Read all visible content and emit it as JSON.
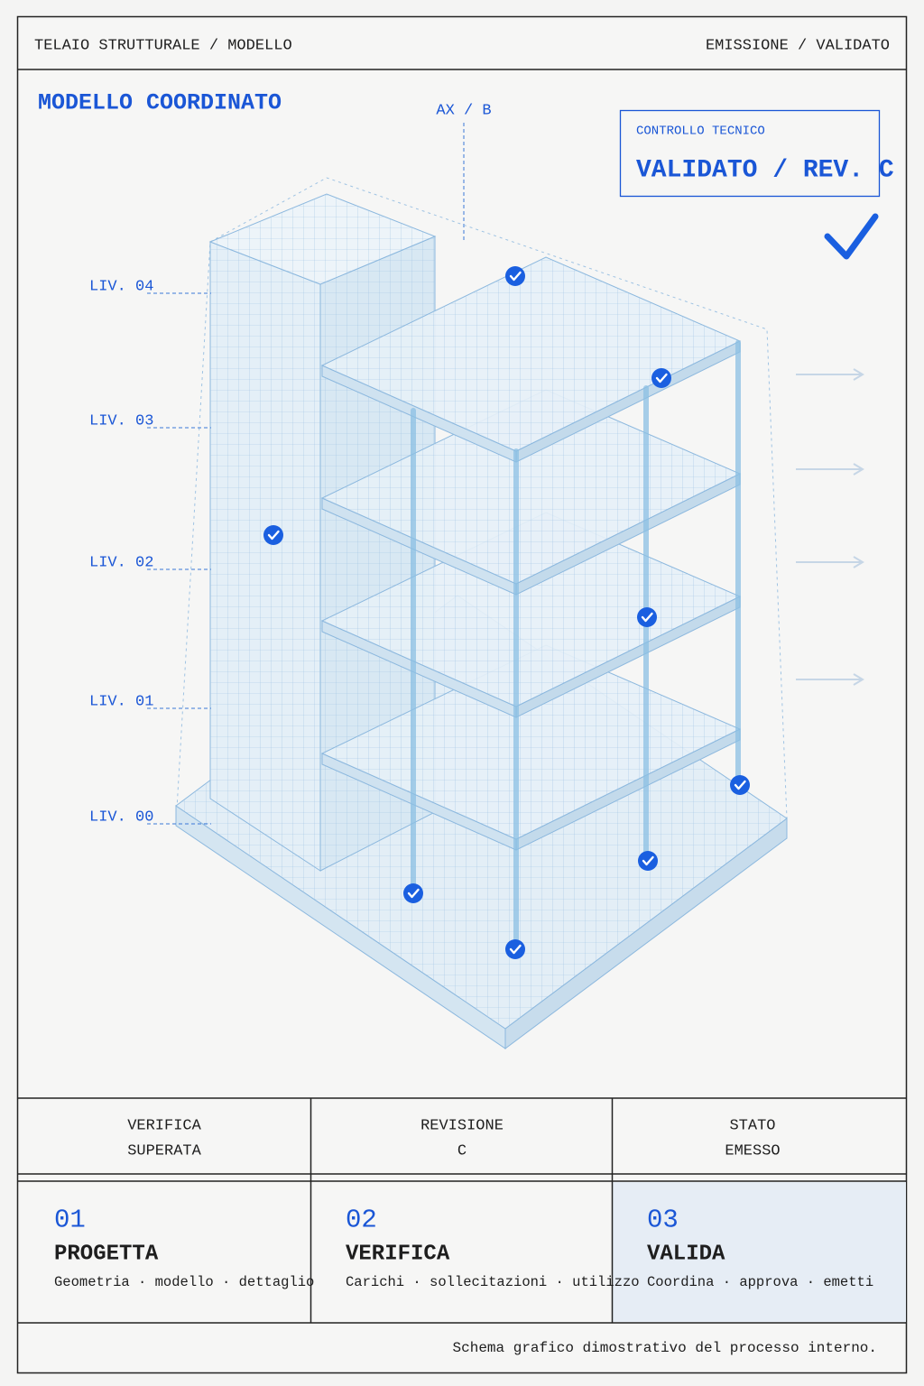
{
  "header": {
    "left": "TELAIO STRUTTURALE / MODELLO",
    "right": "EMISSIONE / VALIDATO"
  },
  "model": {
    "title": "MODELLO COORDINATO",
    "axis_label": "AX / B",
    "levels": [
      "LIV. 04",
      "LIV. 03",
      "LIV. 02",
      "LIV. 01",
      "LIV. 00"
    ]
  },
  "stamp": {
    "label": "CONTROLLO TECNICO",
    "title": "VALIDATO / REV. C"
  },
  "status": [
    {
      "lines": [
        "VERIFICA",
        "SUPERATA"
      ]
    },
    {
      "lines": [
        "REVISIONE",
        "C"
      ]
    },
    {
      "lines": [
        "STATO",
        "EMESSO"
      ]
    }
  ],
  "steps": [
    {
      "number": "01",
      "title": "PROGETTA",
      "description": "Geometria · modello · dettaglio"
    },
    {
      "number": "02",
      "title": "VERIFICA",
      "description": "Carichi · sollecitazioni · utilizzo"
    },
    {
      "number": "03",
      "title": "VALIDA",
      "description": "Coordina · approva · emetti"
    }
  ],
  "footer": {
    "note": "Schema grafico dimostrativo del processo interno."
  }
}
